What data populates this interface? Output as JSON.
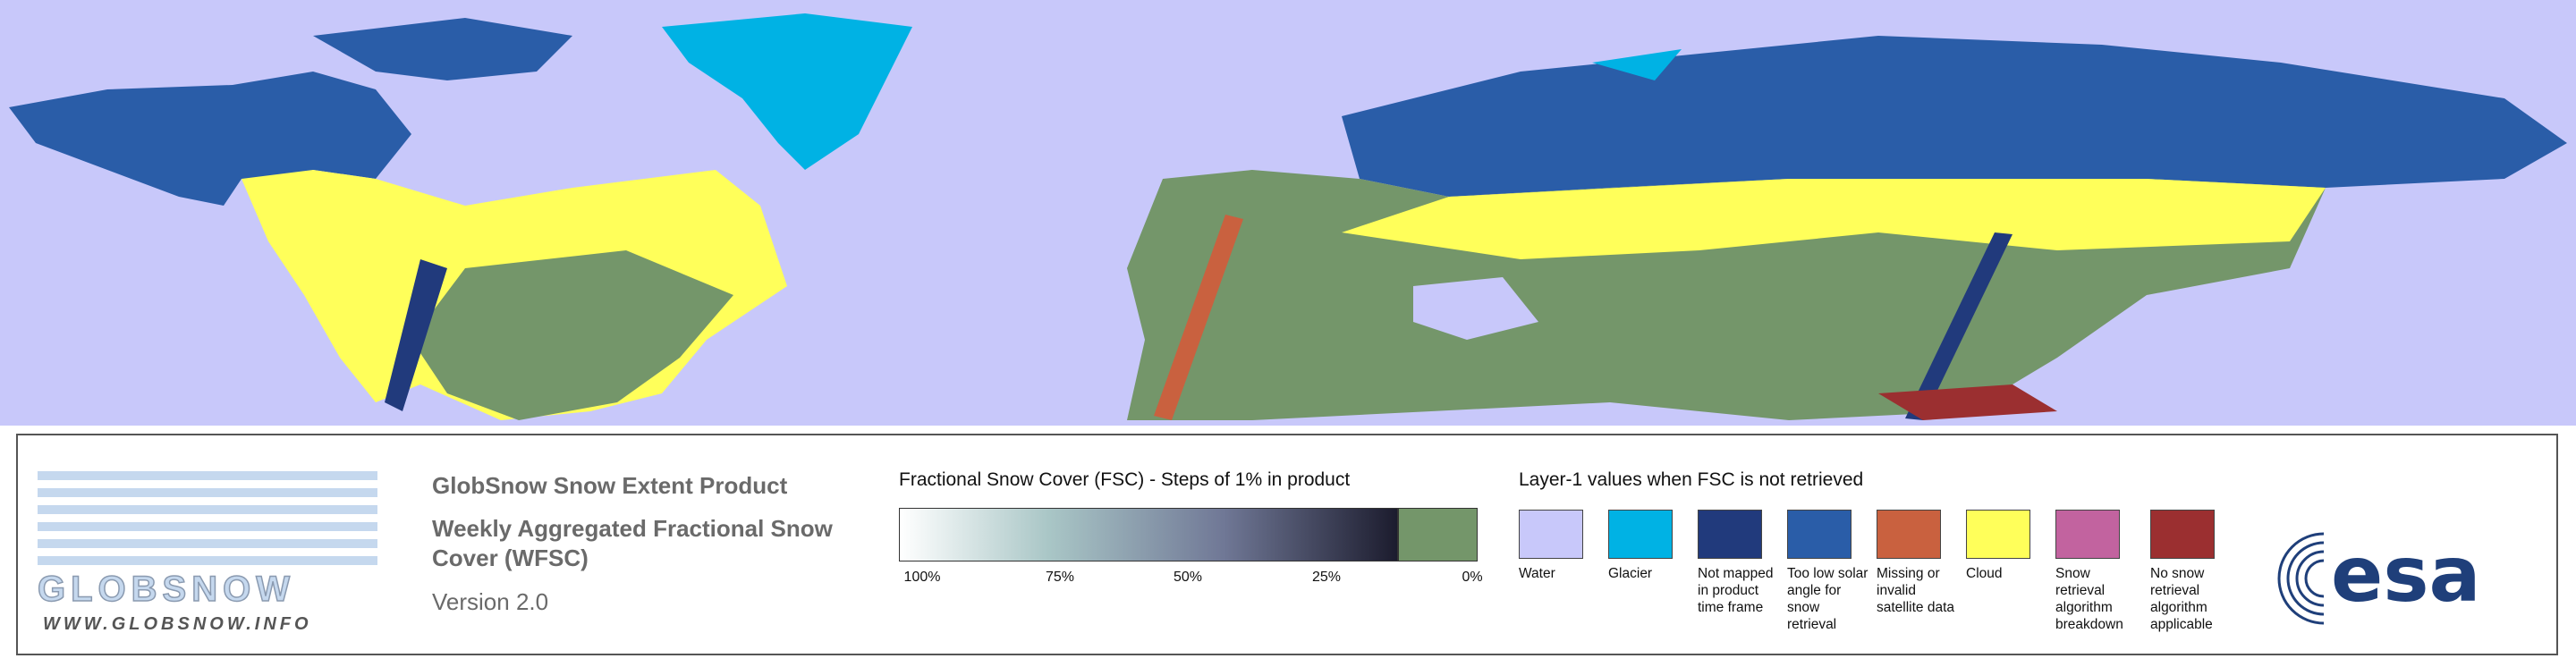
{
  "logo": {
    "name": "GLOBSNOW",
    "url": "WWW.GLOBSNOW.INFO"
  },
  "product": {
    "title": "GlobSnow Snow Extent Product",
    "subtitle": "Weekly Aggregated Fractional Snow Cover (WFSC)",
    "version": "Version 2.0"
  },
  "fsc_legend": {
    "title": "Fractional Snow Cover (FSC) - Steps of 1% in product",
    "ticks": [
      "100%",
      "75%",
      "50%",
      "25%",
      "0%"
    ]
  },
  "layer_legend": {
    "title": "Layer-1 values when FSC is not retrieved",
    "items": [
      {
        "label": "Water",
        "color": "#c8c8fa"
      },
      {
        "label": "Glacier",
        "color": "#00b2e4"
      },
      {
        "label": "Not mapped in product time frame",
        "color": "#213a7c"
      },
      {
        "label": "Too low solar angle for snow retrieval",
        "color": "#2a5da8"
      },
      {
        "label": "Missing or invalid satellite data",
        "color": "#c9613f"
      },
      {
        "label": "Cloud",
        "color": "#ffff5a"
      },
      {
        "label": "Snow retrieval algorithm breakdown",
        "color": "#c2639f"
      },
      {
        "label": "No snow retrieval algorithm applicable",
        "color": "#9b2f30"
      }
    ]
  },
  "esa_logo": "esa"
}
